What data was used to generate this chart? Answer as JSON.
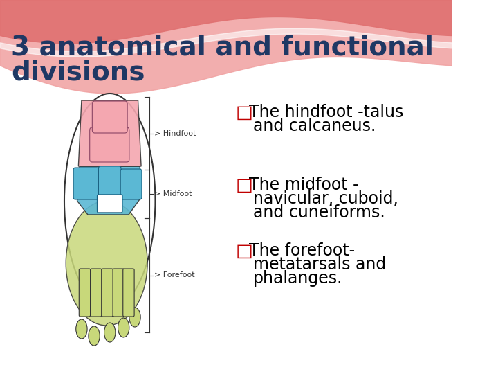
{
  "title_line1": "3 anatomical and functional",
  "title_line2": "divisions",
  "title_color": "#1F3864",
  "title_fontsize": 28,
  "title_bold": true,
  "bg_color": "#FFFFFF",
  "wave_color1": "#E07070",
  "wave_color2": "#F0A0A0",
  "bullet_char": "□",
  "bullet_color": "#C00000",
  "bullet_items": [
    [
      "The hindfoot -talus",
      "and calcaneus."
    ],
    [
      "The midfoot -",
      "navicular, cuboid,",
      "and cuneiforms."
    ],
    [
      "The forefoot-",
      "metatarsals and",
      "phalanges."
    ]
  ],
  "text_color": "#000000",
  "text_fontsize": 17,
  "hindfoot_color": "#F4A7B0",
  "midfoot_color": "#5BB8D4",
  "forefoot_color": "#C8D87A",
  "label_fontsize": 8
}
